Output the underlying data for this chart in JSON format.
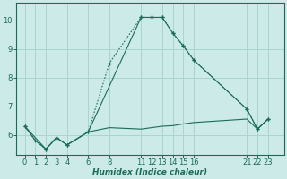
{
  "xlabel": "Humidex (Indice chaleur)",
  "bg_color": "#cceae8",
  "grid_color": "#aad4d0",
  "line_color": "#1a6b5a",
  "xlim": [
    -0.8,
    24.5
  ],
  "ylim": [
    5.3,
    10.6
  ],
  "xticks": [
    0,
    1,
    2,
    3,
    4,
    6,
    8,
    11,
    12,
    13,
    14,
    15,
    16,
    21,
    22,
    23
  ],
  "yticks": [
    6,
    7,
    8,
    9,
    10
  ],
  "line_dotted_x": [
    0,
    1,
    2,
    3,
    4,
    6,
    8,
    11,
    12,
    13,
    14,
    15,
    16,
    21,
    22,
    23
  ],
  "line_dotted_y": [
    6.3,
    5.8,
    5.5,
    5.9,
    5.65,
    6.1,
    8.5,
    10.1,
    10.1,
    10.1,
    9.55,
    9.1,
    8.6,
    6.9,
    6.2,
    6.55
  ],
  "line_solid_marked_x": [
    0,
    1,
    2,
    3,
    4,
    6,
    8,
    11,
    12,
    13,
    14,
    15,
    16,
    21,
    22,
    23
  ],
  "line_solid_marked_y": [
    6.3,
    5.8,
    5.5,
    5.9,
    5.65,
    6.1,
    6.25,
    6.2,
    6.25,
    6.3,
    6.32,
    6.38,
    6.43,
    6.55,
    6.2,
    6.55
  ],
  "line_solid_x": [
    0,
    2,
    3,
    4,
    6,
    11,
    12,
    13,
    14,
    15,
    16,
    21,
    22,
    23
  ],
  "line_solid_y": [
    6.3,
    5.5,
    5.9,
    5.65,
    6.1,
    10.1,
    10.1,
    10.1,
    9.55,
    9.1,
    8.6,
    6.9,
    6.2,
    6.55
  ]
}
